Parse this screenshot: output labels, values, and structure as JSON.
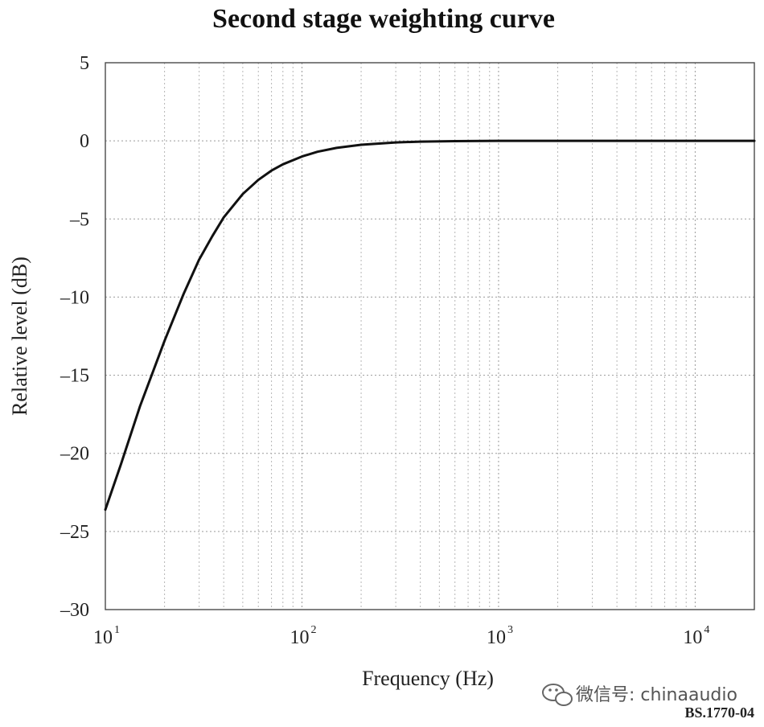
{
  "chart_data": {
    "type": "line",
    "title": "Second stage weighting curve",
    "xlabel": "Frequency (Hz)",
    "ylabel": "Relative level (dB)",
    "x_scale": "log",
    "xlim": [
      10,
      20000
    ],
    "ylim": [
      -30,
      5
    ],
    "grid": true,
    "x_ticks": [
      {
        "base": "10",
        "exp": "1",
        "value": 10
      },
      {
        "base": "10",
        "exp": "2",
        "value": 100
      },
      {
        "base": "10",
        "exp": "3",
        "value": 1000
      },
      {
        "base": "10",
        "exp": "4",
        "value": 10000
      }
    ],
    "y_ticks": [
      {
        "label": "5",
        "value": 5
      },
      {
        "label": "0",
        "value": 0
      },
      {
        "label": "–5",
        "value": -5
      },
      {
        "label": "–10",
        "value": -10
      },
      {
        "label": "–15",
        "value": -15
      },
      {
        "label": "–20",
        "value": -20
      },
      {
        "label": "–25",
        "value": -25
      },
      {
        "label": "–30",
        "value": -30
      }
    ],
    "series": [
      {
        "color": "#111111",
        "x": [
          10,
          12,
          15,
          20,
          25,
          30,
          35,
          40,
          50,
          60,
          70,
          80,
          100,
          120,
          150,
          200,
          300,
          400,
          600,
          1000,
          2000,
          5000,
          10000,
          20000
        ],
        "y": [
          -23.6,
          -20.7,
          -17,
          -12.8,
          -9.8,
          -7.6,
          -6.1,
          -4.9,
          -3.4,
          -2.5,
          -1.9,
          -1.5,
          -1,
          -0.7,
          -0.45,
          -0.25,
          -0.1,
          -0.05,
          -0.02,
          0,
          0,
          0,
          0,
          0
        ]
      }
    ]
  },
  "figure_code": "BS.1770-04",
  "watermark": {
    "icon": "wechat-icon",
    "text": "微信号: chinaaudio"
  }
}
